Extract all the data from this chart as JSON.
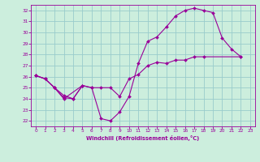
{
  "xlabel": "Windchill (Refroidissement éolien,°C)",
  "bg_color": "#cceedd",
  "grid_color": "#99cccc",
  "line_color": "#990099",
  "xlim": [
    -0.5,
    23.5
  ],
  "ylim": [
    21.5,
    32.5
  ],
  "xticks": [
    0,
    1,
    2,
    3,
    4,
    5,
    6,
    7,
    8,
    9,
    10,
    11,
    12,
    13,
    14,
    15,
    16,
    17,
    18,
    19,
    20,
    21,
    22,
    23
  ],
  "yticks": [
    22,
    23,
    24,
    25,
    26,
    27,
    28,
    29,
    30,
    31,
    32
  ],
  "series": [
    {
      "x": [
        0,
        1,
        2,
        3,
        4,
        5,
        6,
        7,
        8,
        9,
        10,
        11,
        12,
        13,
        14,
        15,
        16,
        17,
        18,
        19,
        20,
        21,
        22
      ],
      "y": [
        26.1,
        25.8,
        25.0,
        24.3,
        24.0,
        25.2,
        25.0,
        22.2,
        22.0,
        22.8,
        24.2,
        27.2,
        29.2,
        29.6,
        30.5,
        31.5,
        32.0,
        32.2,
        32.0,
        31.8,
        29.5,
        28.5,
        27.8
      ]
    },
    {
      "x": [
        0,
        1,
        2,
        3,
        5,
        6,
        7,
        8,
        9,
        10,
        11,
        12,
        13,
        14,
        15,
        16,
        17,
        18,
        22
      ],
      "y": [
        26.1,
        25.8,
        25.0,
        24.0,
        25.2,
        25.0,
        25.0,
        25.0,
        24.2,
        25.8,
        26.2,
        27.0,
        27.3,
        27.2,
        27.5,
        27.5,
        27.8,
        27.8,
        27.8
      ]
    },
    {
      "x": [
        0,
        1,
        2,
        3,
        4,
        5
      ],
      "y": [
        26.1,
        25.8,
        25.0,
        24.1,
        24.0,
        25.2
      ]
    }
  ]
}
